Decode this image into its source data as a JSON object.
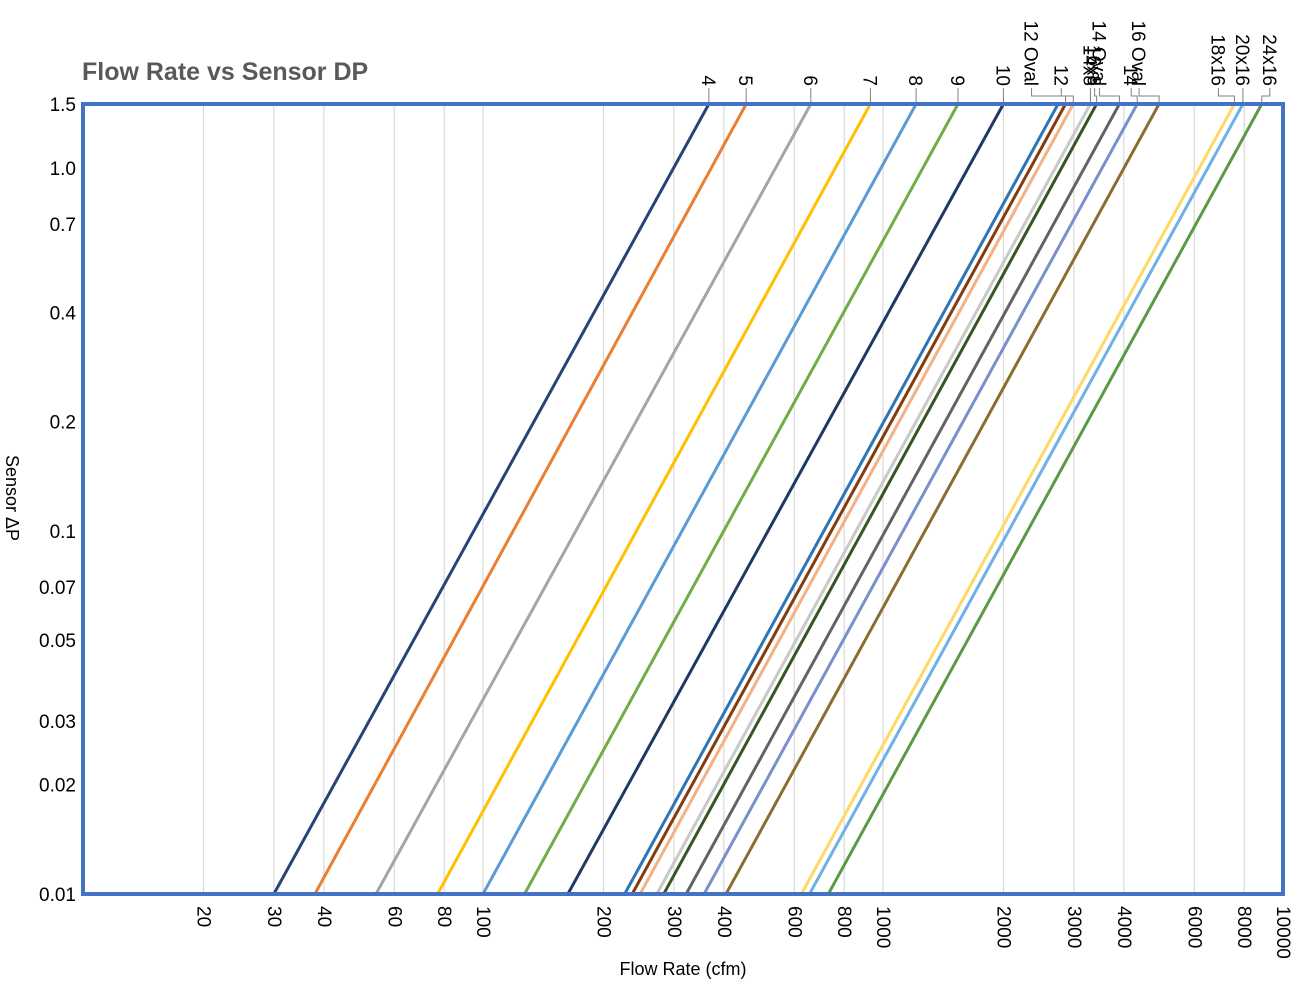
{
  "chart_data": {
    "type": "line",
    "title": "Flow Rate vs Sensor DP",
    "xlabel": "Flow Rate (cfm)",
    "ylabel": "Sensor ΔP",
    "x_scale": "log",
    "y_scale": "log",
    "xlim": [
      10,
      10000
    ],
    "ylim": [
      0.01,
      1.5
    ],
    "x_ticks": [
      20,
      30,
      40,
      60,
      80,
      100,
      200,
      300,
      400,
      600,
      800,
      1000,
      2000,
      3000,
      4000,
      6000,
      8000,
      10000
    ],
    "y_ticks": [
      0.01,
      0.02,
      0.03,
      0.05,
      0.07,
      0.1,
      0.2,
      0.4,
      0.7,
      1.0,
      1.5
    ],
    "y_tick_labels": [
      "0.01",
      "0.02",
      "0.03",
      "0.05",
      "0.07",
      "0.1",
      "0.2",
      "0.4",
      "0.7",
      "1.0",
      "1.5"
    ],
    "grid": true,
    "series": [
      {
        "name": "4",
        "x": [
          30,
          367
        ],
        "y": [
          0.01,
          1.5
        ],
        "color": "#264478"
      },
      {
        "name": "5",
        "x": [
          38,
          455
        ],
        "y": [
          0.01,
          1.5
        ],
        "color": "#ed7d31"
      },
      {
        "name": "6",
        "x": [
          54,
          660
        ],
        "y": [
          0.01,
          1.5
        ],
        "color": "#a5a5a5"
      },
      {
        "name": "7",
        "x": [
          77,
          930
        ],
        "y": [
          0.01,
          1.5
        ],
        "color": "#ffc000"
      },
      {
        "name": "8",
        "x": [
          100,
          1210
        ],
        "y": [
          0.01,
          1.5
        ],
        "color": "#5b9bd5"
      },
      {
        "name": "9",
        "x": [
          127,
          1540
        ],
        "y": [
          0.01,
          1.5
        ],
        "color": "#70ad47"
      },
      {
        "name": "10",
        "x": [
          163,
          2000
        ],
        "y": [
          0.01,
          1.5
        ],
        "color": "#1f3864"
      },
      {
        "name": "",
        "x": [
          226,
          2740
        ],
        "y": [
          0.01,
          1.5
        ],
        "color": "#2e75b6"
      },
      {
        "name": "12 Oval",
        "x": [
          236,
          2860
        ],
        "y": [
          0.01,
          1.5
        ],
        "color": "#843c0c"
      },
      {
        "name": "12",
        "x": [
          247,
          2990
        ],
        "y": [
          0.01,
          1.5
        ],
        "color": "#f4b183"
      },
      {
        "name": "14x8",
        "x": [
          272,
          3300
        ],
        "y": [
          0.01,
          1.5
        ],
        "color": "#c9c9c9"
      },
      {
        "name": "16x8",
        "x": [
          283,
          3420
        ],
        "y": [
          0.01,
          1.5
        ],
        "color": "#375623"
      },
      {
        "name": "14 Oval",
        "x": [
          322,
          3900
        ],
        "y": [
          0.01,
          1.5
        ],
        "color": "#636363"
      },
      {
        "name": "14",
        "x": [
          357,
          4320
        ],
        "y": [
          0.01,
          1.5
        ],
        "color": "#7a8fcc"
      },
      {
        "name": "16 Oval",
        "x": [
          405,
          4900
        ],
        "y": [
          0.01,
          1.5
        ],
        "color": "#8c6d31"
      },
      {
        "name": "18x16",
        "x": [
          625,
          7560
        ],
        "y": [
          0.01,
          1.5
        ],
        "color": "#ffd966"
      },
      {
        "name": "20x16",
        "x": [
          655,
          7940
        ],
        "y": [
          0.01,
          1.5
        ],
        "color": "#6fb0e6"
      },
      {
        "name": "24x16",
        "x": [
          730,
          8850
        ],
        "y": [
          0.01,
          1.5
        ],
        "color": "#5b9a45"
      }
    ],
    "colors": {
      "frame": "#4472c4",
      "grid": "#d9d9d9",
      "title": "#595959"
    }
  }
}
